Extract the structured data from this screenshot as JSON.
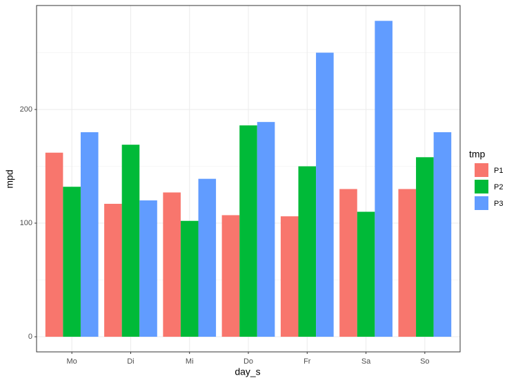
{
  "chart_data": {
    "type": "bar",
    "x_label": "day_s",
    "y_label": "mpd",
    "categories": [
      "Mo",
      "Di",
      "Mi",
      "Do",
      "Fr",
      "Sa",
      "So"
    ],
    "series": [
      {
        "name": "P1",
        "color": "#F8766D",
        "values": [
          162,
          117,
          127,
          107,
          106,
          130,
          130
        ]
      },
      {
        "name": "P2",
        "color": "#00BA38",
        "values": [
          132,
          169,
          102,
          186,
          150,
          110,
          158
        ]
      },
      {
        "name": "P3",
        "color": "#619CFF",
        "values": [
          180,
          120,
          139,
          189,
          250,
          278,
          180
        ]
      }
    ],
    "legend_title": "tmp",
    "legend_position": "right",
    "ylim": [
      -13.3,
      291.5
    ],
    "yticks": [
      0,
      100,
      200
    ],
    "yminorticks": [
      50,
      150,
      250
    ],
    "grid": true
  }
}
